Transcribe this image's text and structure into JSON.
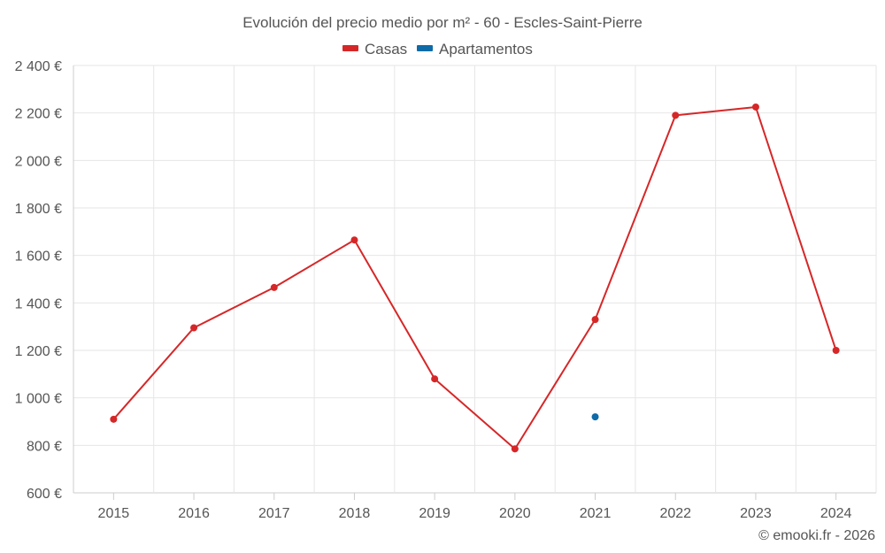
{
  "chart_data": {
    "type": "line",
    "title": "Evolución del precio medio por m² - 60 - Escles-Saint-Pierre",
    "categories": [
      "2015",
      "2016",
      "2017",
      "2018",
      "2019",
      "2020",
      "2021",
      "2022",
      "2023",
      "2024"
    ],
    "series": [
      {
        "name": "Casas",
        "color": "#d62728",
        "values": [
          910,
          1295,
          1465,
          1665,
          1080,
          785,
          1330,
          2190,
          2225,
          1200
        ]
      },
      {
        "name": "Apartamentos",
        "color": "#0e6ba8",
        "values": [
          null,
          null,
          null,
          null,
          null,
          null,
          920,
          null,
          null,
          null
        ]
      }
    ],
    "ylim": [
      600,
      2400
    ],
    "y_ticks": [
      600,
      800,
      1000,
      1200,
      1400,
      1600,
      1800,
      2000,
      2200,
      2400
    ],
    "y_tick_labels": [
      "600 €",
      "800 €",
      "1 000 €",
      "1 200 €",
      "1 400 €",
      "1 600 €",
      "1 800 €",
      "2 000 €",
      "2 200 €",
      "2 400 €"
    ],
    "grid": true,
    "legend_position": "top-center",
    "credit": "© emooki.fr - 2026"
  }
}
